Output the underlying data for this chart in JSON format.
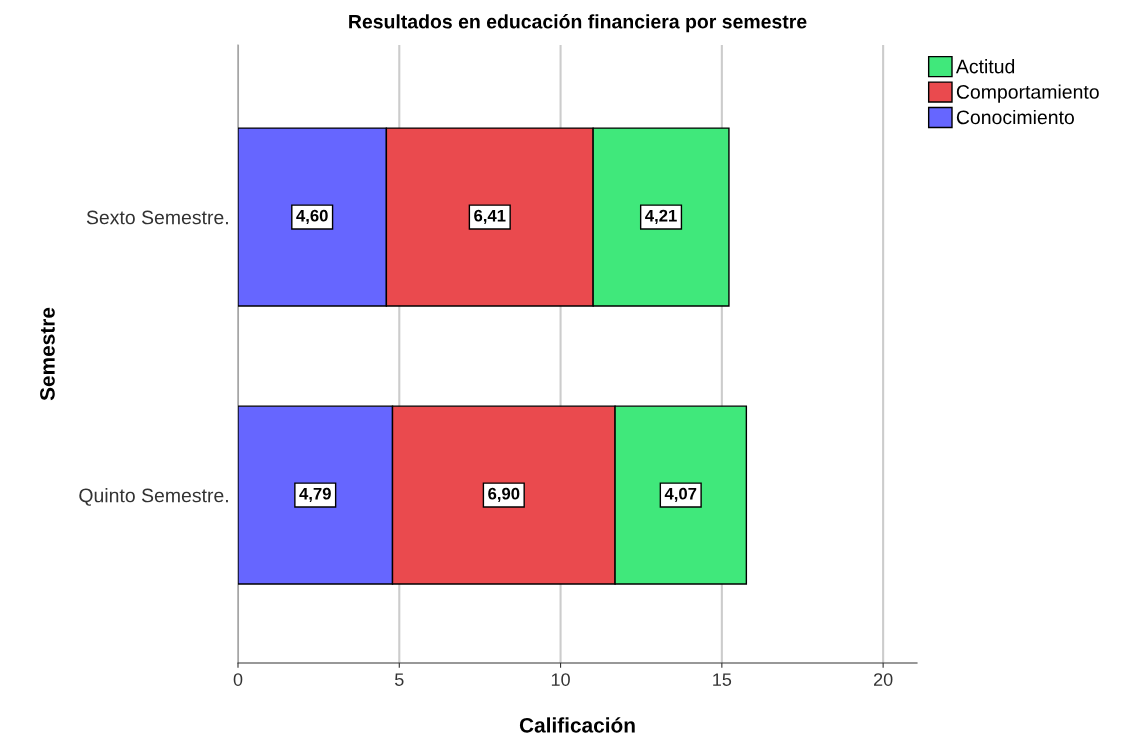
{
  "chart_data": {
    "type": "bar",
    "orientation": "horizontal",
    "stacked": true,
    "title": "Resultados en educación financiera por semestre",
    "xlabel": "Calificación",
    "ylabel": "Semestre",
    "categories": [
      "Sexto Semestre.",
      "Quinto Semestre."
    ],
    "series": [
      {
        "name": "Conocimiento",
        "color": "#6666ff",
        "values": [
          4.6,
          4.79
        ],
        "value_labels": [
          "4,60",
          "4,79"
        ]
      },
      {
        "name": "Comportamiento",
        "color": "#ea4a4e",
        "values": [
          6.41,
          6.9
        ],
        "value_labels": [
          "6,41",
          "6,90"
        ]
      },
      {
        "name": "Actitud",
        "color": "#40e87b",
        "values": [
          4.21,
          4.07
        ],
        "value_labels": [
          "4,21",
          "4,07"
        ]
      }
    ],
    "xlim": [
      0,
      21.05
    ],
    "xticks": [
      0,
      5,
      10,
      15,
      20
    ],
    "grid": "x",
    "legend": "top right"
  }
}
